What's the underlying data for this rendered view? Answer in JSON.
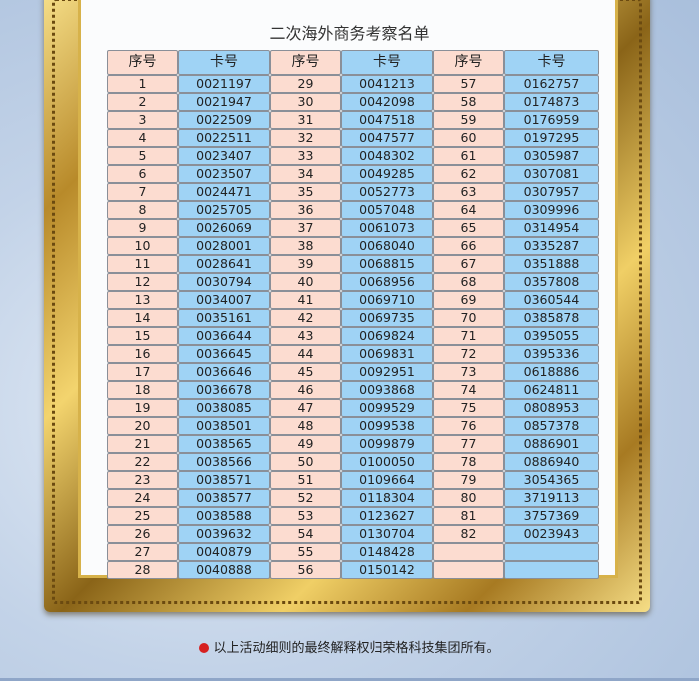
{
  "title": "二次海外商务考察名单",
  "table": {
    "headers": [
      "序号",
      "卡号",
      "序号",
      "卡号",
      "序号",
      "卡号"
    ],
    "rows": [
      [
        "1",
        "0021197",
        "29",
        "0041213",
        "57",
        "0162757"
      ],
      [
        "2",
        "0021947",
        "30",
        "0042098",
        "58",
        "0174873"
      ],
      [
        "3",
        "0022509",
        "31",
        "0047518",
        "59",
        "0176959"
      ],
      [
        "4",
        "0022511",
        "32",
        "0047577",
        "60",
        "0197295"
      ],
      [
        "5",
        "0023407",
        "33",
        "0048302",
        "61",
        "0305987"
      ],
      [
        "6",
        "0023507",
        "34",
        "0049285",
        "62",
        "0307081"
      ],
      [
        "7",
        "0024471",
        "35",
        "0052773",
        "63",
        "0307957"
      ],
      [
        "8",
        "0025705",
        "36",
        "0057048",
        "64",
        "0309996"
      ],
      [
        "9",
        "0026069",
        "37",
        "0061073",
        "65",
        "0314954"
      ],
      [
        "10",
        "0028001",
        "38",
        "0068040",
        "66",
        "0335287"
      ],
      [
        "11",
        "0028641",
        "39",
        "0068815",
        "67",
        "0351888"
      ],
      [
        "12",
        "0030794",
        "40",
        "0068956",
        "68",
        "0357808"
      ],
      [
        "13",
        "0034007",
        "41",
        "0069710",
        "69",
        "0360544"
      ],
      [
        "14",
        "0035161",
        "42",
        "0069735",
        "70",
        "0385878"
      ],
      [
        "15",
        "0036644",
        "43",
        "0069824",
        "71",
        "0395055"
      ],
      [
        "16",
        "0036645",
        "44",
        "0069831",
        "72",
        "0395336"
      ],
      [
        "17",
        "0036646",
        "45",
        "0092951",
        "73",
        "0618886"
      ],
      [
        "18",
        "0036678",
        "46",
        "0093868",
        "74",
        "0624811"
      ],
      [
        "19",
        "0038085",
        "47",
        "0099529",
        "75",
        "0808953"
      ],
      [
        "20",
        "0038501",
        "48",
        "0099538",
        "76",
        "0857378"
      ],
      [
        "21",
        "0038565",
        "49",
        "0099879",
        "77",
        "0886901"
      ],
      [
        "22",
        "0038566",
        "50",
        "0100050",
        "78",
        "0886940"
      ],
      [
        "23",
        "0038571",
        "51",
        "0109664",
        "79",
        "3054365"
      ],
      [
        "24",
        "0038577",
        "52",
        "0118304",
        "80",
        "3719113"
      ],
      [
        "25",
        "0038588",
        "53",
        "0123627",
        "81",
        "3757369"
      ],
      [
        "26",
        "0039632",
        "54",
        "0130704",
        "82",
        "0023943"
      ],
      [
        "27",
        "0040879",
        "55",
        "0148428",
        "",
        ""
      ],
      [
        "28",
        "0040888",
        "56",
        "0150142",
        "",
        ""
      ]
    ]
  },
  "footer": {
    "text": "以上活动细则的最终解释权归荣格科技集团所有。",
    "bullet_color": "#d62020"
  },
  "colors": {
    "seq_cell": "#fcdcd0",
    "card_cell": "#9fd3f5",
    "frame": "#c9a03a"
  }
}
